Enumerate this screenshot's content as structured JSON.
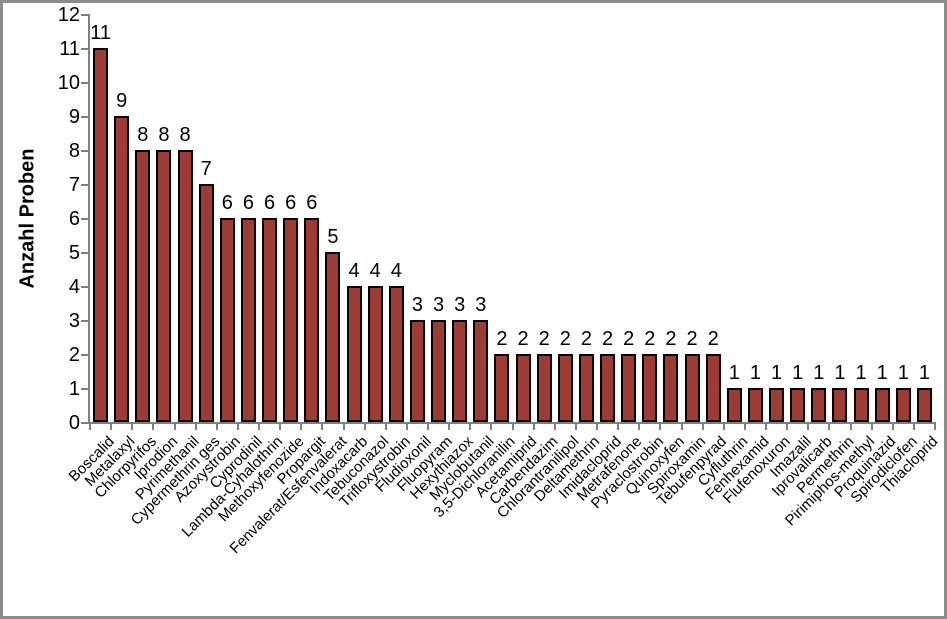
{
  "chart_data": {
    "type": "bar",
    "title": "",
    "ylabel": "Anzahl Proben",
    "xlabel": "",
    "ylim": [
      0,
      12
    ],
    "yticks": [
      0,
      1,
      2,
      3,
      4,
      5,
      6,
      7,
      8,
      9,
      10,
      11,
      12
    ],
    "grid": false,
    "legend": null,
    "data_labels": true,
    "categories": [
      "Boscalid",
      "Metalaxyl",
      "Chlorpyrifos",
      "Iprodion",
      "Pyrimethanil",
      "Cypermethrin ges",
      "Azoxystrobin",
      "Cyprodinil",
      "Lambda-Cyhalothrin",
      "Methoxyfenozide",
      "Propargit",
      "Fenvalerat/Esfenvalerat",
      "Indoxacarb",
      "Tebuconazol",
      "Trifloxystrobin",
      "Fludioxonil",
      "Fluopyram",
      "Hexythiazox",
      "Myclobutanil",
      "3,5-Dichloranilin",
      "Acetamiprid",
      "Carbendazim",
      "Chlorantranilipol",
      "Deltamethrin",
      "Imidacloprid",
      "Metrafenone",
      "Pyraclostrobin",
      "Quinoxyfen",
      "Spiroxamin",
      "Tebufenpyrad",
      "Cyfluthrin",
      "Fenhexamid",
      "Flufenoxuron",
      "Imazalil",
      "Iprovalicarb",
      "Permethrin",
      "Pirimiphos-methyl",
      "Proquinazid",
      "Spirodiclofen",
      "Thiacloprid"
    ],
    "values": [
      11,
      9,
      8,
      8,
      8,
      7,
      6,
      6,
      6,
      6,
      6,
      5,
      4,
      4,
      4,
      3,
      3,
      3,
      3,
      2,
      2,
      2,
      2,
      2,
      2,
      2,
      2,
      2,
      2,
      2,
      1,
      1,
      1,
      1,
      1,
      1,
      1,
      1,
      1,
      1
    ],
    "colors": {
      "bar_fill": "#9E3B35",
      "bar_border": "#000000",
      "axis_line": "#808080",
      "text": "#000000",
      "frame_border": "#8C8C8C",
      "background": "#FFFFFF"
    }
  }
}
